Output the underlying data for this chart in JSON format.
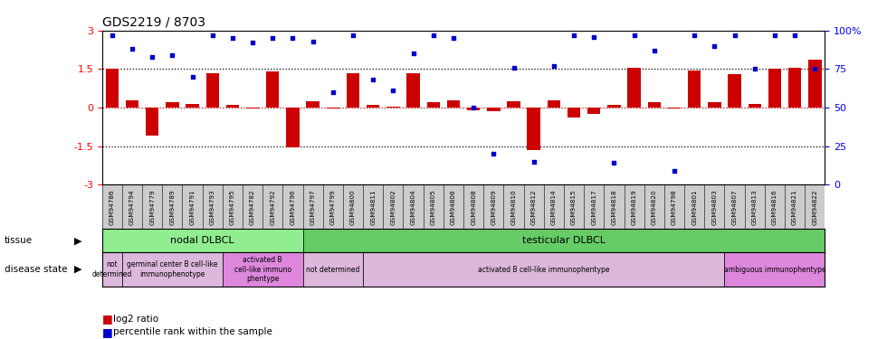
{
  "title": "GDS2219 / 8703",
  "samples": [
    "GSM94786",
    "GSM94794",
    "GSM94779",
    "GSM94789",
    "GSM94791",
    "GSM94793",
    "GSM94795",
    "GSM94782",
    "GSM94792",
    "GSM94796",
    "GSM94797",
    "GSM94799",
    "GSM94800",
    "GSM94811",
    "GSM94802",
    "GSM94804",
    "GSM94805",
    "GSM94806",
    "GSM94808",
    "GSM94809",
    "GSM94810",
    "GSM94812",
    "GSM94814",
    "GSM94815",
    "GSM94817",
    "GSM94818",
    "GSM94819",
    "GSM94820",
    "GSM94798",
    "GSM94801",
    "GSM94803",
    "GSM94807",
    "GSM94813",
    "GSM94816",
    "GSM94821",
    "GSM94822"
  ],
  "log2ratio": [
    1.5,
    0.3,
    -1.1,
    0.2,
    0.15,
    1.35,
    0.1,
    -0.05,
    1.4,
    -1.55,
    0.25,
    -0.05,
    1.35,
    0.1,
    0.05,
    1.35,
    0.2,
    0.3,
    -0.1,
    -0.15,
    0.25,
    -1.65,
    0.3,
    -0.4,
    -0.25,
    0.1,
    1.55,
    0.2,
    -0.05,
    1.45,
    0.2,
    1.3,
    0.15,
    1.5,
    1.55,
    1.85
  ],
  "percentile": [
    97,
    88,
    83,
    84,
    70,
    97,
    95,
    92,
    95,
    95,
    93,
    60,
    97,
    68,
    61,
    85,
    97,
    95,
    50,
    20,
    76,
    15,
    77,
    97,
    96,
    14,
    97,
    87,
    9,
    97,
    90,
    97,
    75,
    97,
    97,
    75
  ],
  "tissue_groups": [
    {
      "label": "nodal DLBCL",
      "start": 0,
      "end": 10,
      "color": "#90EE90"
    },
    {
      "label": "testicular DLBCL",
      "start": 10,
      "end": 36,
      "color": "#66CC66"
    }
  ],
  "disease_groups": [
    {
      "label": "not\ndetermined",
      "start": 0,
      "end": 1,
      "color": "#DDB8DD"
    },
    {
      "label": "germinal center B cell-like\nimmunophenotype",
      "start": 1,
      "end": 6,
      "color": "#DDB8DD"
    },
    {
      "label": "activated B\ncell-like immuno\nphentype",
      "start": 6,
      "end": 10,
      "color": "#DD88DD"
    },
    {
      "label": "not determined",
      "start": 10,
      "end": 13,
      "color": "#DDB8DD"
    },
    {
      "label": "activated B cell-like immunophentype",
      "start": 13,
      "end": 31,
      "color": "#DDB8DD"
    },
    {
      "label": "ambiguous immunophentype",
      "start": 31,
      "end": 36,
      "color": "#DD88DD"
    }
  ],
  "bar_color": "#CC0000",
  "dot_color": "#0000CC",
  "ylim_left": [
    -3,
    3
  ],
  "ylim_right": [
    0,
    100
  ],
  "yticks_left": [
    -3,
    -1.5,
    0,
    1.5,
    3
  ],
  "yticks_right": [
    0,
    25,
    50,
    75,
    100
  ],
  "ytick_labels_right": [
    "0",
    "25",
    "50",
    "75",
    "100%"
  ]
}
